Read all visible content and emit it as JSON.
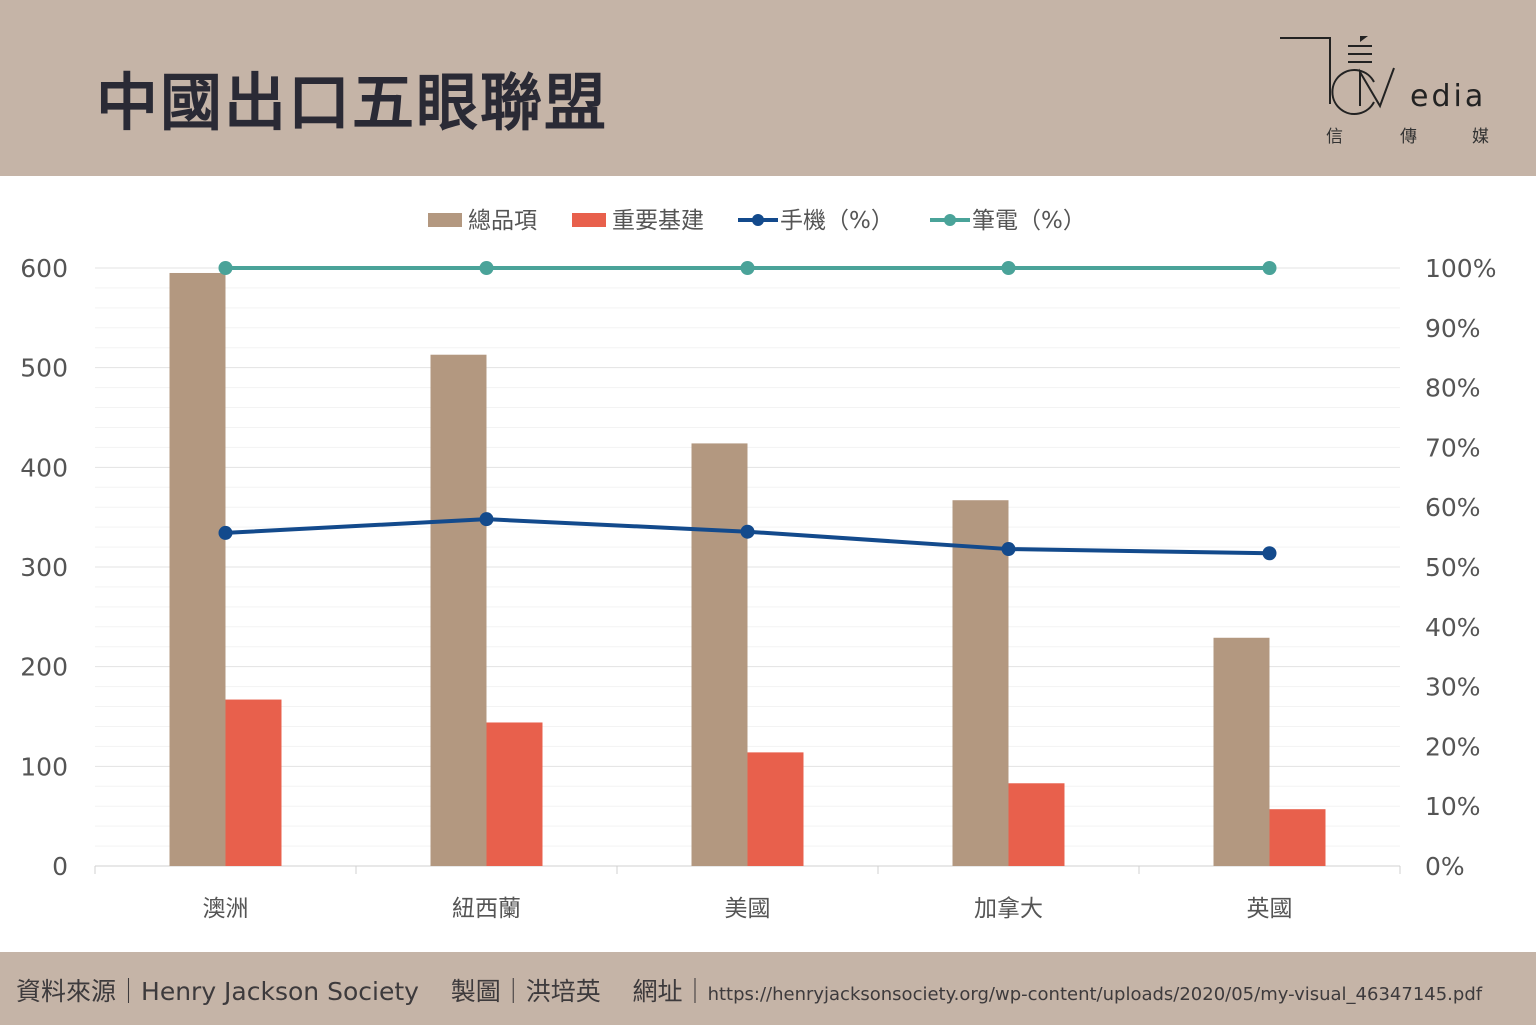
{
  "header": {
    "title": "中國出口五眼聯盟",
    "logo_text": "Media",
    "logo_sub": [
      "信",
      "傳",
      "媒"
    ]
  },
  "footer": {
    "source_label": "資料來源｜",
    "source": "Henry Jackson Society",
    "maker_label": "製圖｜",
    "maker": "洪培英",
    "url_label": "網址｜",
    "url": "https://henryjacksonsociety.org/wp-content/uploads/2020/05/my-visual_46347145.pdf"
  },
  "colors": {
    "header_bg": "#c5b4a7",
    "bar_total": "#b39880",
    "bar_infra": "#e8604c",
    "line_phone": "#134a8c",
    "line_laptop": "#4aa399"
  },
  "chart_data": {
    "type": "bar",
    "categories": [
      "澳洲",
      "紐西蘭",
      "美國",
      "加拿大",
      "英國"
    ],
    "series": [
      {
        "name": "總品項",
        "type": "bar",
        "axis": "left",
        "values": [
          595,
          513,
          424,
          367,
          229
        ]
      },
      {
        "name": "重要基建",
        "type": "bar",
        "axis": "left",
        "values": [
          167,
          144,
          114,
          83,
          57
        ]
      },
      {
        "name": "手機（%）",
        "type": "line",
        "axis": "right",
        "values": [
          55.7,
          58.0,
          55.9,
          53.0,
          52.3
        ]
      },
      {
        "name": "筆電（%）",
        "type": "line",
        "axis": "right",
        "values": [
          100,
          100,
          100,
          100,
          100
        ]
      }
    ],
    "ylim": [
      0,
      600
    ],
    "yticks": [
      "0",
      "100",
      "200",
      "300",
      "400",
      "500",
      "600"
    ],
    "y2lim": [
      0,
      100
    ],
    "y2ticks": [
      "0%",
      "10%",
      "20%",
      "30%",
      "40%",
      "50%",
      "60%",
      "70%",
      "80%",
      "90%",
      "100%"
    ],
    "grid": true,
    "legend": "top"
  }
}
